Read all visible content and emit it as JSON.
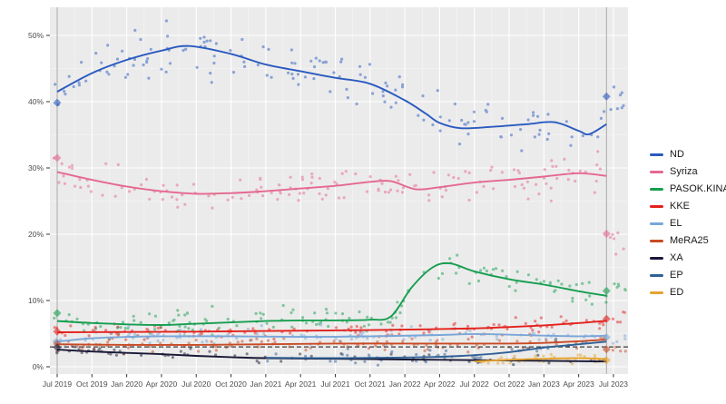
{
  "chart_data": {
    "type": "scatter",
    "description": "Opinion polling scatter with smoothed trend lines per party, gray panel with white gridlines, dashed 3% threshold line, vertical election reference lines with diamond result markers, legend at right",
    "x_ticks": [
      "Jul 2019",
      "Oct 2019",
      "Jan 2020",
      "Apr 2020",
      "Jul 2020",
      "Oct 2020",
      "Jan 2021",
      "Apr 2021",
      "Jul 2021",
      "Oct 2021",
      "Jan 2022",
      "Apr 2022",
      "Jul 2022",
      "Oct 2022",
      "Jan 2023",
      "Apr 2023",
      "Jul 2023"
    ],
    "y_ticks": [
      {
        "v": 0,
        "label": "0%"
      },
      {
        "v": 10,
        "label": "10%"
      },
      {
        "v": 20,
        "label": "20%"
      },
      {
        "v": 30,
        "label": "30%"
      },
      {
        "v": 40,
        "label": "40%"
      },
      {
        "v": 50,
        "label": "50%"
      }
    ],
    "ylim": [
      0,
      54
    ],
    "grid": true,
    "legend_position": "right",
    "threshold_line": {
      "value": 3,
      "style": "dashed",
      "color": "#3d3d3d"
    },
    "panel_color": "#ebebeb",
    "grid_color": "#ffffff",
    "axis_text_color": "#4d4d4d",
    "election_line_color": "#a9a9a9",
    "scatter_seed": 42,
    "elections": [
      {
        "q": 0,
        "results": [
          {
            "party": "ND",
            "value": 39.85
          },
          {
            "party": "Syriza",
            "value": 31.53
          },
          {
            "party": "PASOK.KINAL",
            "value": 8.1
          },
          {
            "party": "KKE",
            "value": 5.3
          },
          {
            "party": "EL",
            "value": 3.7
          },
          {
            "party": "MeRA25",
            "value": 3.44
          },
          {
            "party": "XA",
            "value": 2.93
          }
        ]
      },
      {
        "q": 15.8,
        "results": [
          {
            "party": "ND",
            "value": 40.79
          },
          {
            "party": "Syriza",
            "value": 20.07
          },
          {
            "party": "PASOK.KINAL",
            "value": 11.46
          },
          {
            "party": "KKE",
            "value": 7.23
          },
          {
            "party": "EL",
            "value": 4.45
          },
          {
            "party": "MeRA25",
            "value": 2.64
          },
          {
            "party": "ED",
            "value": 1.0
          }
        ]
      }
    ],
    "series": [
      {
        "name": "ND",
        "color": "#2a5ac0",
        "sd": 1.9,
        "n": 150,
        "trend": [
          [
            0,
            41.5
          ],
          [
            1,
            44.3
          ],
          [
            2,
            46.3
          ],
          [
            3,
            47.7
          ],
          [
            3.8,
            48.4
          ],
          [
            5,
            47.2
          ],
          [
            6,
            45.6
          ],
          [
            7,
            44.6
          ],
          [
            8,
            43.6
          ],
          [
            9,
            42.7
          ],
          [
            10,
            40.2
          ],
          [
            10.6,
            38.2
          ],
          [
            11,
            36.8
          ],
          [
            11.6,
            36.0
          ],
          [
            12.5,
            36.2
          ],
          [
            13.5,
            36.6
          ],
          [
            14.3,
            36.9
          ],
          [
            15,
            35.6
          ],
          [
            15.3,
            35.1
          ],
          [
            15.8,
            36.6
          ]
        ],
        "post": {
          "mean": 40.6,
          "n": 8,
          "sd": 1.4
        }
      },
      {
        "name": "Syriza",
        "color": "#e5688f",
        "sd": 1.3,
        "n": 150,
        "trend": [
          [
            0,
            29.4
          ],
          [
            1,
            28.2
          ],
          [
            2,
            27.2
          ],
          [
            3,
            26.5
          ],
          [
            4,
            26.1
          ],
          [
            5,
            26.2
          ],
          [
            6,
            26.5
          ],
          [
            7,
            26.9
          ],
          [
            8,
            27.3
          ],
          [
            9,
            27.9
          ],
          [
            9.6,
            28.0
          ],
          [
            10.3,
            26.8
          ],
          [
            11,
            27.1
          ],
          [
            12,
            27.8
          ],
          [
            13,
            28.2
          ],
          [
            14,
            28.7
          ],
          [
            15,
            29.2
          ],
          [
            15.8,
            28.8
          ]
        ],
        "post": {
          "mean": 19.6,
          "n": 6,
          "sd": 1.0
        }
      },
      {
        "name": "PASOK.KINAL",
        "color": "#169e50",
        "sd": 1.0,
        "n": 145,
        "trend": [
          [
            0,
            6.9
          ],
          [
            1,
            6.6
          ],
          [
            2,
            6.4
          ],
          [
            3,
            6.3
          ],
          [
            4,
            6.5
          ],
          [
            5,
            6.7
          ],
          [
            6,
            6.9
          ],
          [
            7,
            7.0
          ],
          [
            8,
            7.0
          ],
          [
            9,
            7.1
          ],
          [
            9.6,
            7.6
          ],
          [
            10.2,
            12.0
          ],
          [
            10.8,
            15.0
          ],
          [
            11.3,
            15.6
          ],
          [
            12,
            14.4
          ],
          [
            13,
            13.2
          ],
          [
            14,
            12.4
          ],
          [
            15,
            11.4
          ],
          [
            15.8,
            10.7
          ]
        ],
        "post": {
          "mean": 12.0,
          "n": 6,
          "sd": 0.8
        }
      },
      {
        "name": "KKE",
        "color": "#e3201b",
        "sd": 0.55,
        "n": 120,
        "trend": [
          [
            0,
            5.2
          ],
          [
            2,
            5.25
          ],
          [
            4,
            5.3
          ],
          [
            6,
            5.4
          ],
          [
            8,
            5.5
          ],
          [
            10,
            5.6
          ],
          [
            12,
            5.8
          ],
          [
            13,
            6.0
          ],
          [
            14,
            6.25
          ],
          [
            15,
            6.6
          ],
          [
            15.8,
            6.95
          ]
        ],
        "post": {
          "mean": 7.5,
          "n": 5,
          "sd": 0.5
        }
      },
      {
        "name": "EL",
        "color": "#7aa6d9",
        "sd": 0.6,
        "n": 110,
        "trend": [
          [
            0,
            3.8
          ],
          [
            1,
            4.3
          ],
          [
            2,
            4.5
          ],
          [
            3,
            4.6
          ],
          [
            5,
            4.6
          ],
          [
            7,
            4.5
          ],
          [
            9,
            4.6
          ],
          [
            11,
            4.8
          ],
          [
            12,
            4.95
          ],
          [
            13,
            4.85
          ],
          [
            14,
            4.7
          ],
          [
            15,
            4.6
          ],
          [
            15.8,
            4.7
          ]
        ],
        "post": {
          "mean": 4.4,
          "n": 4,
          "sd": 0.5
        }
      },
      {
        "name": "MeRA25",
        "color": "#c84a24",
        "sd": 0.55,
        "n": 105,
        "trend": [
          [
            0,
            3.4
          ],
          [
            2,
            3.3
          ],
          [
            4,
            3.3
          ],
          [
            6,
            3.4
          ],
          [
            8,
            3.5
          ],
          [
            10,
            3.5
          ],
          [
            12,
            3.5
          ],
          [
            13,
            3.5
          ],
          [
            14,
            3.6
          ],
          [
            15,
            3.85
          ],
          [
            15.8,
            4.1
          ]
        ],
        "post": {
          "mean": 2.6,
          "n": 4,
          "sd": 0.4
        }
      },
      {
        "name": "XA",
        "color": "#191936",
        "sd": 0.45,
        "n": 65,
        "trend": [
          [
            0,
            2.6
          ],
          [
            1,
            2.3
          ],
          [
            2,
            2.1
          ],
          [
            3,
            1.9
          ],
          [
            4,
            1.65
          ],
          [
            5,
            1.45
          ],
          [
            6,
            1.3
          ],
          [
            8,
            1.2
          ],
          [
            10,
            1.1
          ],
          [
            12,
            1.0
          ],
          [
            14,
            0.9
          ],
          [
            15.8,
            0.8
          ]
        ]
      },
      {
        "name": "EP",
        "color": "#2f6096",
        "sd": 0.5,
        "n": 55,
        "trend": [
          [
            6,
            1.35
          ],
          [
            8,
            1.3
          ],
          [
            10,
            1.4
          ],
          [
            11,
            1.5
          ],
          [
            12,
            1.75
          ],
          [
            13,
            2.2
          ],
          [
            14,
            2.9
          ],
          [
            15,
            3.4
          ],
          [
            15.8,
            3.8
          ]
        ]
      },
      {
        "name": "ED",
        "color": "#e5a32e",
        "sd": 0.3,
        "n": 35,
        "trend": [
          [
            12,
            0.8
          ],
          [
            13,
            1.05
          ],
          [
            14,
            1.2
          ],
          [
            15,
            1.3
          ],
          [
            15.8,
            1.15
          ]
        ]
      }
    ]
  }
}
